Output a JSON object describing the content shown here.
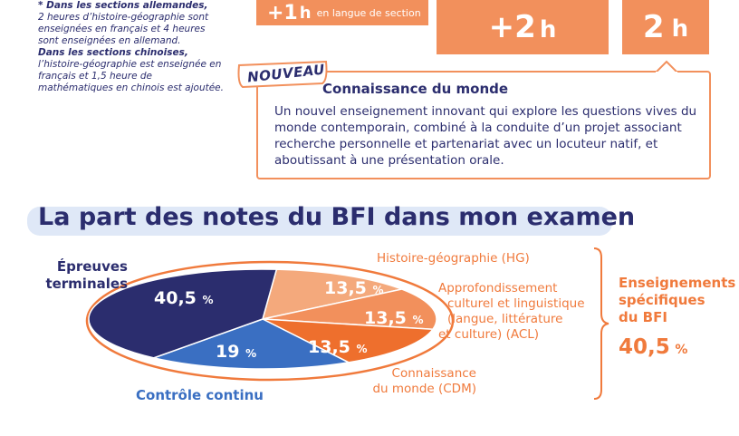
{
  "top": {
    "hours_small_value": "+1",
    "hours_small_unit": "h",
    "hours_small_caption": "en langue de section",
    "hours_mid_value": "+2",
    "hours_mid_unit": "h",
    "hours_right_value": "2",
    "hours_right_unit": "h"
  },
  "note": {
    "line1_bold": "* Dans les sections allemandes,",
    "line1_text": "2 heures d’histoire-géographie sont enseignées en français et 4 heures sont enseignées en allemand.",
    "line2_bold": "Dans les sections chinoises,",
    "line2_text": "l’histoire-géographie est enseignée en français et 1,5 heure de mathématiques en chinois est ajoutée."
  },
  "cdm": {
    "badge": "NOUVEAU",
    "title": "Connaissance du monde",
    "text": "Un nouvel enseignement innovant qui explore les questions vives du monde contemporain, combiné à la conduite d’un projet associant recherche personnelle et partenariat avec un locuteur natif, et aboutissant à une présentation orale."
  },
  "section": {
    "heading": "La part des notes du BFI dans mon examen"
  },
  "chart_data": {
    "type": "pie",
    "slices": [
      {
        "label": "Épreuves terminales",
        "value": 40.5,
        "value_text": "40,5",
        "unit": "%",
        "color": "#2b2d6e"
      },
      {
        "label": "Histoire-géographie (HG)",
        "value": 13.5,
        "value_text": "13,5",
        "unit": "%",
        "color": "#f4a97c"
      },
      {
        "label": "Approfondissement culturel et linguistique (langue, littérature et culture) (ACL)",
        "value": 13.5,
        "value_text": "13,5",
        "unit": "%",
        "color": "#f2905c"
      },
      {
        "label": "Connaissance du monde (CDM)",
        "value": 13.5,
        "value_text": "13,5",
        "unit": "%",
        "color": "#ee6f2d"
      },
      {
        "label": "Contrôle continu",
        "value": 19,
        "value_text": "19",
        "unit": "%",
        "color": "#3a6fc2"
      }
    ],
    "group": {
      "label": "Enseignements spécifiques du BFI",
      "value_text": "40,5",
      "unit": "%"
    }
  },
  "labels": {
    "epreuves_l1": "Épreuves",
    "epreuves_l2": "terminales",
    "controle": "Contrôle continu",
    "hg": "Histoire-géographie (HG)",
    "acl_l1": "Approfondissement",
    "acl_l2": "culturel et linguistique",
    "acl_l3": "(langue, littérature",
    "acl_l4": "et culture) (ACL)",
    "cdm_l1": "Connaissance",
    "cdm_l2": "du monde (CDM)",
    "ens_l1": "Enseignements",
    "ens_l2": "spécifiques",
    "ens_l3": "du BFI",
    "ens_value": "40,5",
    "ens_unit": "%"
  }
}
